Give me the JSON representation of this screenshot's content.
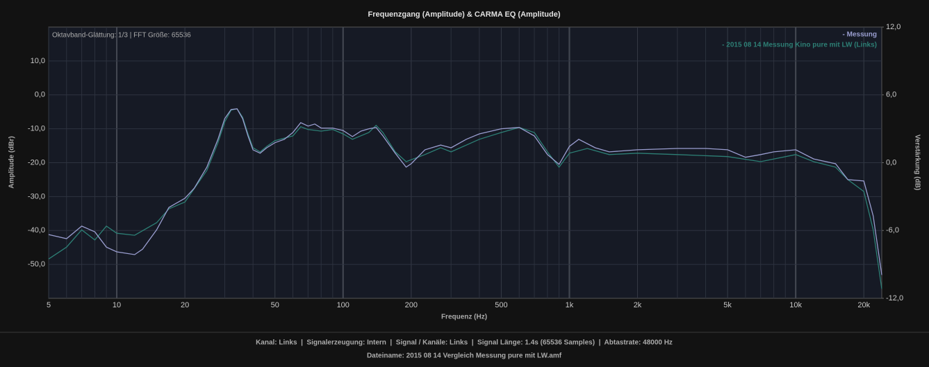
{
  "chart_data": {
    "type": "line",
    "title": "Frequenzgang (Amplitude) & CARMA EQ (Amplitude)",
    "annotation": "Oktavband-Glättung: 1/3 | FFT Größe: 65536",
    "x_label": "Frequenz (Hz)",
    "y_label": "Amplitude (dBr)",
    "y2_label": "Verstärkung (dB)",
    "x_log": true,
    "grid": true,
    "minor_grid": true,
    "legend": "top-right",
    "xlim": [
      5,
      24000
    ],
    "xticks": [
      5,
      10,
      20,
      50,
      100,
      200,
      500,
      {
        "value": 1000,
        "label": "1k"
      },
      {
        "value": 2000,
        "label": "2k"
      },
      {
        "value": 5000,
        "label": "5k"
      },
      {
        "value": 10000,
        "label": "10k"
      },
      {
        "value": 20000,
        "label": "20k"
      }
    ],
    "ylim": [
      -60,
      20
    ],
    "yticks": [
      {
        "value": 10,
        "label": "10,0"
      },
      {
        "value": 0,
        "label": "0,0"
      },
      {
        "value": -10,
        "label": "-10,0"
      },
      {
        "value": -20,
        "label": "-20,0"
      },
      {
        "value": -30,
        "label": "-30,0"
      },
      {
        "value": -40,
        "label": "-40,0"
      },
      {
        "value": -50,
        "label": "-50,0"
      }
    ],
    "y2lim": [
      -12,
      12
    ],
    "y2ticks": [
      {
        "value": 12,
        "label": "12,0"
      },
      {
        "value": 6,
        "label": "6,0"
      },
      {
        "value": 0,
        "label": "0,0"
      },
      {
        "value": -6,
        "label": "-6,0"
      },
      {
        "value": -12,
        "label": "-12,0"
      }
    ],
    "series": [
      {
        "name": "- Messung",
        "color": "#9a9ed0",
        "x": [
          5,
          6,
          7,
          8,
          9,
          10,
          12,
          13,
          15,
          17,
          20,
          22,
          25,
          28,
          30,
          32,
          34,
          36,
          38,
          40,
          43,
          46,
          50,
          55,
          60,
          65,
          70,
          75,
          80,
          90,
          100,
          110,
          120,
          130,
          140,
          150,
          170,
          190,
          200,
          230,
          270,
          300,
          350,
          400,
          500,
          600,
          700,
          800,
          900,
          1000,
          1100,
          1300,
          1500,
          2000,
          3000,
          4000,
          5000,
          6000,
          7000,
          8000,
          10000,
          12000,
          15000,
          17000,
          20000,
          22000,
          24000
        ],
        "values": [
          -41.2,
          -42.4,
          -38.7,
          -40.4,
          -44.9,
          -46.3,
          -47.1,
          -45.5,
          -39.8,
          -33.2,
          -30.5,
          -27.5,
          -21.3,
          -13.1,
          -7,
          -4.3,
          -4.1,
          -7,
          -12.1,
          -16.2,
          -17.2,
          -15.6,
          -14.1,
          -13.1,
          -11.1,
          -8.2,
          -9.2,
          -8.6,
          -9.8,
          -9.8,
          -10.5,
          -12.3,
          -10.7,
          -10,
          -9.6,
          -12.1,
          -17.2,
          -21.3,
          -20.3,
          -16.2,
          -14.8,
          -15.6,
          -13.1,
          -11.5,
          -10,
          -9.6,
          -12.1,
          -17.6,
          -20.5,
          -15.2,
          -13.1,
          -15.6,
          -16.8,
          -16.2,
          -15.8,
          -15.8,
          -16.2,
          -18.4,
          -17.6,
          -16.8,
          -16.2,
          -18.9,
          -20.3,
          -25,
          -25.4,
          -35.7,
          -53.1
        ]
      },
      {
        "name": "- 2015 08 14 Messung Kino pure mit LW (Links)",
        "color": "#2d7f75",
        "x": [
          5,
          6,
          7,
          8,
          9,
          10,
          12,
          15,
          17,
          20,
          25,
          28,
          30,
          32,
          34,
          36,
          38,
          40,
          43,
          46,
          50,
          60,
          65,
          70,
          80,
          90,
          100,
          110,
          130,
          140,
          150,
          170,
          190,
          230,
          270,
          300,
          400,
          500,
          600,
          700,
          800,
          900,
          1000,
          1200,
          1500,
          2000,
          3000,
          5000,
          7000,
          10000,
          12000,
          15000,
          17000,
          20000,
          22000,
          24000
        ],
        "values": [
          -48.4,
          -44.9,
          -39.8,
          -42.8,
          -38.7,
          -40.8,
          -41.4,
          -37.7,
          -33.6,
          -31.6,
          -22.3,
          -14.1,
          -8,
          -4.5,
          -4.1,
          -6.6,
          -11.5,
          -15.6,
          -16.8,
          -15.2,
          -13.5,
          -12.1,
          -9.4,
          -10.2,
          -10.7,
          -10.2,
          -11.5,
          -13.1,
          -11.1,
          -9,
          -11.1,
          -16.8,
          -19.7,
          -17.6,
          -15.6,
          -16.8,
          -13.1,
          -11.1,
          -9.6,
          -11.1,
          -16.8,
          -21.3,
          -17.2,
          -15.8,
          -17.6,
          -17.2,
          -17.6,
          -18.2,
          -19.7,
          -17.6,
          -19.7,
          -21.3,
          -25,
          -28.5,
          -39.8,
          -57.2
        ]
      }
    ]
  },
  "footer": {
    "line1": "Kanal: Links  |  Signalerzeugung: Intern  |  Signal / Kanäle: Links  |  Signal Länge: 1.4s (65536 Samples)  |  Abtastrate: 48000 Hz",
    "line2": "Dateiname: 2015 08 14 Vergleich Messung pure mit LW.amf"
  }
}
